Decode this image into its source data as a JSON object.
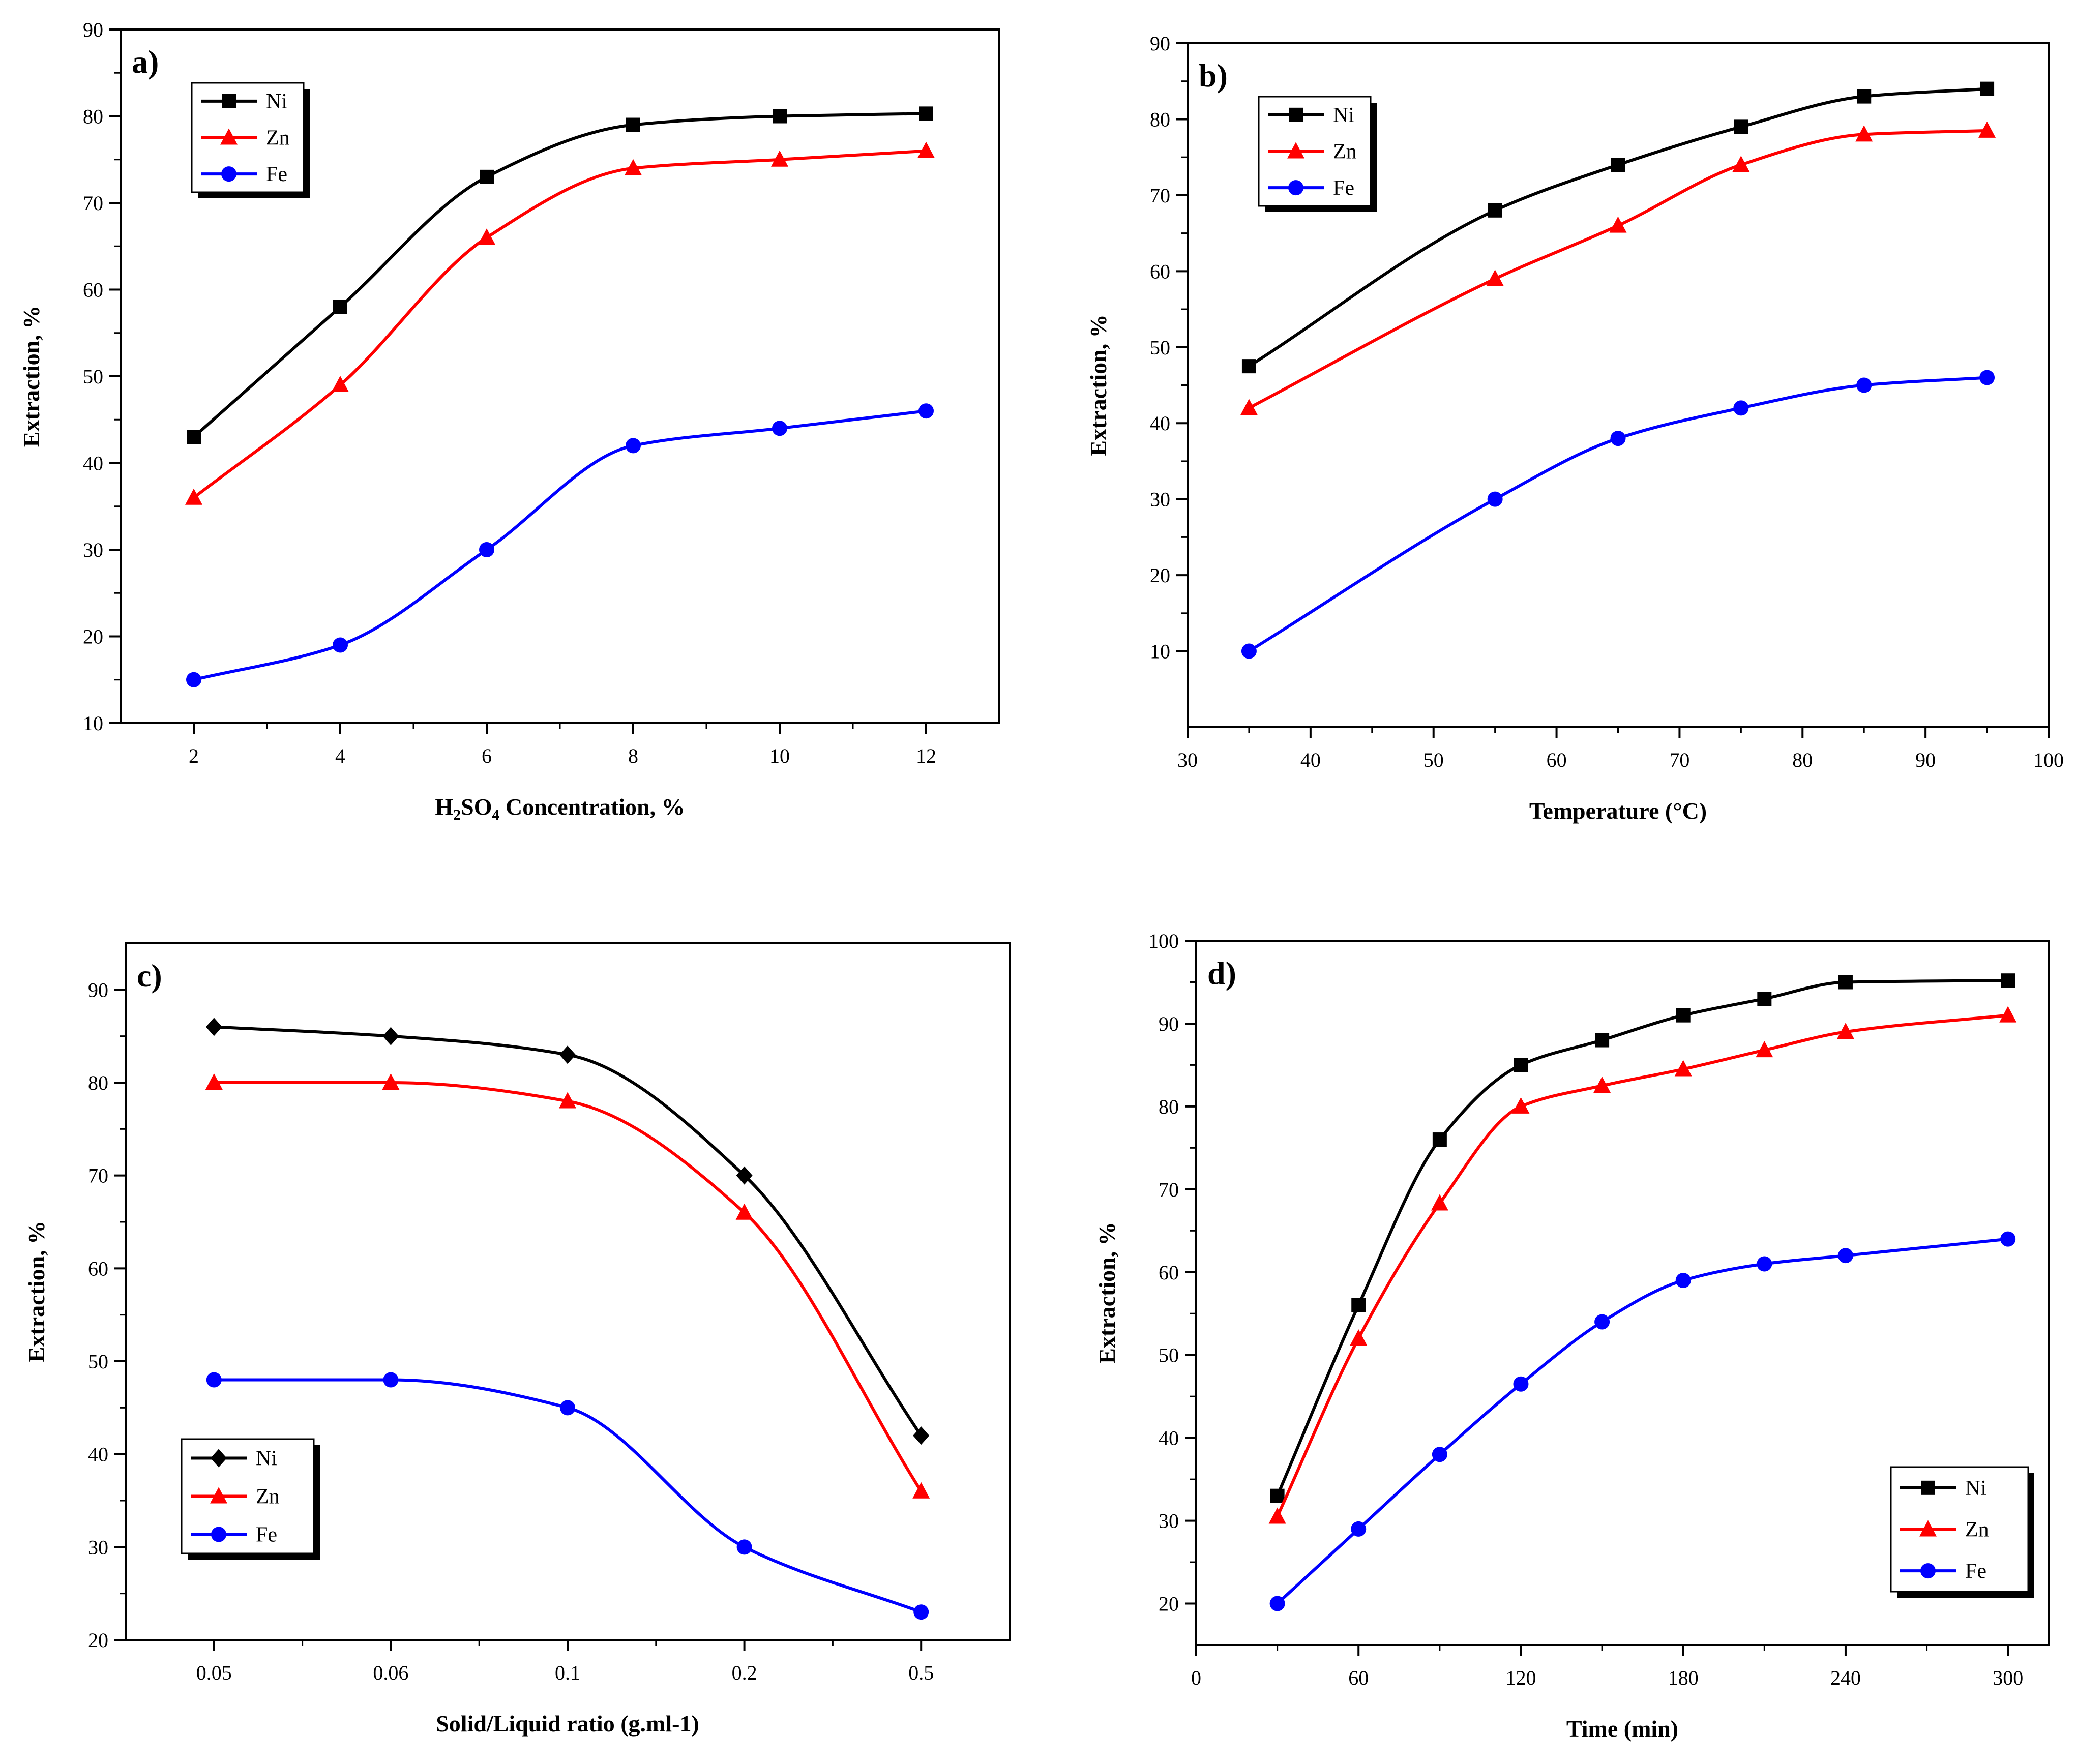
{
  "chart_data": [
    {
      "panel": "a)",
      "type": "line",
      "xlabel_parts": [
        "H",
        "2",
        "SO",
        "4",
        " Concentration, %"
      ],
      "ylabel": "Extraction, %",
      "xscale": "linear",
      "xlim": [
        1,
        13
      ],
      "ylim": [
        10,
        90
      ],
      "xticks": [
        2,
        4,
        6,
        8,
        10,
        12
      ],
      "xticklabels": [
        "2",
        "4",
        "6",
        "8",
        "10",
        "12"
      ],
      "yticks": [
        10,
        20,
        30,
        40,
        50,
        60,
        70,
        80,
        90
      ],
      "legend_position": "top-left",
      "series": [
        {
          "name": "Ni",
          "color": "#000000",
          "marker": "square",
          "x": [
            2,
            4,
            6,
            8,
            10,
            12
          ],
          "values": [
            43,
            58,
            73,
            79,
            80,
            80.3
          ]
        },
        {
          "name": "Zn",
          "color": "#ff0000",
          "marker": "triangle",
          "x": [
            2,
            4,
            6,
            8,
            10,
            12
          ],
          "values": [
            36,
            49,
            66,
            74,
            75,
            76
          ]
        },
        {
          "name": "Fe",
          "color": "#0000ff",
          "marker": "circle",
          "x": [
            2,
            4,
            6,
            8,
            10,
            12
          ],
          "values": [
            15,
            19,
            30,
            42,
            44,
            46
          ]
        }
      ]
    },
    {
      "panel": "b)",
      "type": "line",
      "xlabel": "Temperature (°C)",
      "ylabel": "Extraction, %",
      "xscale": "linear",
      "xlim": [
        30,
        100
      ],
      "ylim": [
        0,
        90
      ],
      "xticks": [
        30,
        40,
        50,
        60,
        70,
        80,
        90,
        100
      ],
      "xticklabels": [
        "30",
        "40",
        "50",
        "60",
        "70",
        "80",
        "90",
        "100"
      ],
      "yticks": [
        10,
        20,
        30,
        40,
        50,
        60,
        70,
        80,
        90
      ],
      "legend_position": "top-left",
      "series": [
        {
          "name": "Ni",
          "color": "#000000",
          "marker": "square",
          "x": [
            35,
            55,
            65,
            75,
            85,
            95
          ],
          "values": [
            47.5,
            68,
            74,
            79,
            83,
            84
          ]
        },
        {
          "name": "Zn",
          "color": "#ff0000",
          "marker": "triangle",
          "x": [
            35,
            55,
            65,
            75,
            85,
            95
          ],
          "values": [
            42,
            59,
            66,
            74,
            78,
            78.5
          ]
        },
        {
          "name": "Fe",
          "color": "#0000ff",
          "marker": "circle",
          "x": [
            35,
            55,
            65,
            75,
            85,
            95
          ],
          "values": [
            10,
            30,
            38,
            42,
            45,
            46
          ]
        }
      ]
    },
    {
      "panel": "c)",
      "type": "line",
      "xlabel": "Solid/Liquid ratio (g.ml-1)",
      "ylabel": "Extraction, %",
      "xscale": "categorical",
      "xlim": [
        0.5,
        5.5
      ],
      "ylim": [
        20,
        95
      ],
      "xticks": [
        1,
        2,
        3,
        4,
        5
      ],
      "xticklabels": [
        "0.05",
        "0.06",
        "0.1",
        "0.2",
        "0.5"
      ],
      "yticks": [
        20,
        30,
        40,
        50,
        60,
        70,
        80,
        90
      ],
      "legend_position": "bottom-left",
      "series": [
        {
          "name": "Ni",
          "color": "#000000",
          "marker": "diamond",
          "x": [
            1,
            2,
            3,
            4,
            5
          ],
          "values": [
            86,
            85,
            83,
            70,
            42
          ]
        },
        {
          "name": "Zn",
          "color": "#ff0000",
          "marker": "triangle",
          "x": [
            1,
            2,
            3,
            4,
            5
          ],
          "values": [
            80,
            80,
            78,
            66,
            36
          ]
        },
        {
          "name": "Fe",
          "color": "#0000ff",
          "marker": "circle",
          "x": [
            1,
            2,
            3,
            4,
            5
          ],
          "values": [
            48,
            48,
            45,
            30,
            23
          ]
        }
      ]
    },
    {
      "panel": "d)",
      "type": "line",
      "xlabel": "Time (min)",
      "ylabel": "Extraction, %",
      "xscale": "linear",
      "xlim": [
        0,
        315
      ],
      "ylim": [
        15,
        100
      ],
      "xticks": [
        0,
        60,
        120,
        180,
        240,
        300
      ],
      "xticklabels": [
        "0",
        "60",
        "120",
        "180",
        "240",
        "300"
      ],
      "yticks": [
        20,
        30,
        40,
        50,
        60,
        70,
        80,
        90,
        100
      ],
      "legend_position": "bottom-right",
      "series": [
        {
          "name": "Ni",
          "color": "#000000",
          "marker": "square",
          "x": [
            30,
            60,
            90,
            120,
            150,
            180,
            210,
            240,
            300
          ],
          "values": [
            33,
            56,
            76,
            85,
            88,
            91,
            93,
            95,
            95.2
          ]
        },
        {
          "name": "Zn",
          "color": "#ff0000",
          "marker": "triangle",
          "x": [
            30,
            60,
            90,
            120,
            150,
            180,
            210,
            240,
            300
          ],
          "values": [
            30.5,
            52,
            68.3,
            80,
            82.5,
            84.5,
            86.8,
            89,
            91
          ]
        },
        {
          "name": "Fe",
          "color": "#0000ff",
          "marker": "circle",
          "x": [
            30,
            60,
            90,
            120,
            150,
            180,
            210,
            240,
            300
          ],
          "values": [
            20,
            29,
            38,
            46.5,
            54,
            59,
            61,
            62,
            64
          ]
        }
      ]
    }
  ]
}
